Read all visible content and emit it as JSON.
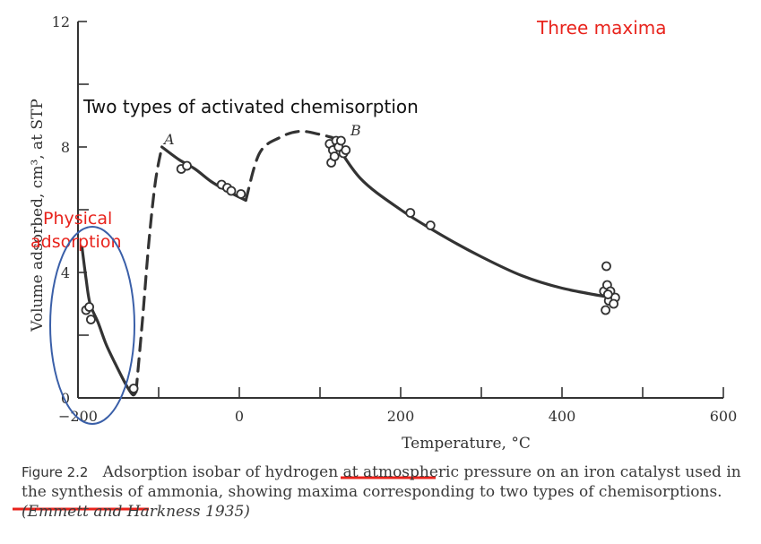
{
  "chart_data": {
    "type": "scatter",
    "xlabel": "Temperature, °C",
    "ylabel": "Volume adsorbed, cm³, at STP",
    "xlim": [
      -200,
      600
    ],
    "ylim": [
      0,
      12
    ],
    "x_ticks": [
      "−200",
      "0",
      "200",
      "400",
      "600"
    ],
    "y_ticks": [
      "0",
      "4",
      "8",
      "12"
    ],
    "point_labels": [
      "A",
      "B"
    ],
    "series": [
      {
        "style": "solid-curve",
        "x": [
          -195,
          -190,
          -185,
          -175,
          -165,
          -152,
          -140,
          -132,
          -128
        ],
        "y": [
          4.8,
          3.8,
          3.0,
          2.4,
          1.7,
          1.0,
          0.4,
          0.1,
          0.2
        ]
      },
      {
        "style": "dashed-curve",
        "x": [
          -128,
          -120,
          -112,
          -104,
          -96
        ],
        "y": [
          0.2,
          2.5,
          5.0,
          6.9,
          8.0
        ]
      },
      {
        "style": "solid-curve",
        "x": [
          -96,
          -75,
          -55,
          -35,
          -15,
          0,
          8
        ],
        "y": [
          8.0,
          7.6,
          7.3,
          6.9,
          6.6,
          6.4,
          6.3
        ]
      },
      {
        "style": "dashed-curve",
        "x": [
          8,
          25,
          50,
          75,
          100,
          115
        ],
        "y": [
          6.3,
          7.8,
          8.3,
          8.5,
          8.4,
          8.3
        ]
      },
      {
        "style": "solid-curve",
        "x": [
          115,
          150,
          200,
          250,
          300,
          350,
          400,
          460
        ],
        "y": [
          8.3,
          7.0,
          6.0,
          5.2,
          4.5,
          3.9,
          3.5,
          3.2
        ]
      },
      {
        "style": "markers",
        "x": [
          -190,
          -186,
          -184,
          -131,
          -72,
          -65,
          -22,
          -15,
          -10,
          2,
          112,
          116,
          120,
          123,
          126,
          129,
          132,
          114,
          118,
          212,
          237,
          455,
          452,
          456,
          460,
          458,
          454,
          466,
          464,
          457
        ],
        "y": [
          2.8,
          2.9,
          2.5,
          0.3,
          7.3,
          7.4,
          6.8,
          6.7,
          6.6,
          6.5,
          8.1,
          7.9,
          8.2,
          8.0,
          8.2,
          7.8,
          7.9,
          7.5,
          7.7,
          5.9,
          5.5,
          4.2,
          3.4,
          3.6,
          3.4,
          3.1,
          2.8,
          3.2,
          3.0,
          3.3
        ]
      }
    ]
  },
  "annotations": {
    "three_maxima": "Three maxima",
    "two_types": "Two types of activated chemisorption",
    "physical_line1": "Physical",
    "physical_line2": "adsorption"
  },
  "caption": {
    "figure_label": "Figure 2.2",
    "text_a": "Adsorption isobar of ",
    "underlined_1": "hydrogen",
    "text_b": " at atmospheric pressure on an ",
    "underlined_2": "iron catalyst",
    "text_c": " used in the synthesis of ammonia, showing maxima corresponding to two types of chemisorptions. ",
    "citation": "(Emmett and Harkness 1935)"
  },
  "colors": {
    "ink": "#333333",
    "annotation": "#e8231c",
    "ellipse": "#3a5fa8"
  }
}
